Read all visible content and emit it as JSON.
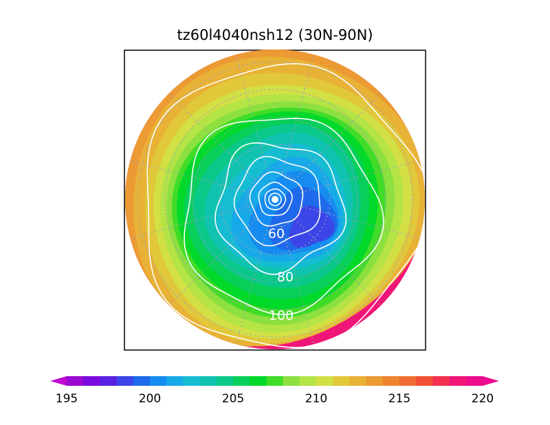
{
  "title": "tz60l4040nsh12 (30N-90N)",
  "map": {
    "projection": "polar-stereographic",
    "hemisphere": "north",
    "lat_range": [
      30,
      90
    ],
    "shaded_field_units": "K",
    "contour_labels": [
      {
        "value": "60"
      },
      {
        "value": "80"
      },
      {
        "value": "100"
      }
    ],
    "graticule": "dotted",
    "contour_color": "#ffffff"
  },
  "colorbar": {
    "min": 195,
    "max": 220,
    "step": 1,
    "tick_labels": [
      "195",
      "200",
      "205",
      "210",
      "215",
      "220"
    ],
    "colors": [
      "#9a0ad2",
      "#7a0ae0",
      "#5a22e0",
      "#3b45e8",
      "#1e6aea",
      "#168cf0",
      "#18a9e8",
      "#16bcd2",
      "#10c3b1",
      "#0ac88a",
      "#08cf5a",
      "#00d82a",
      "#40dc28",
      "#8ce040",
      "#b4e446",
      "#d2e046",
      "#e0c83a",
      "#e8b236",
      "#ec9a34",
      "#ee8430",
      "#f06c34",
      "#f25036",
      "#f23050",
      "#f01678",
      "#ec0c8c"
    ],
    "end_colors": {
      "low": "#c00ad0",
      "high": "#ee0c90"
    }
  }
}
